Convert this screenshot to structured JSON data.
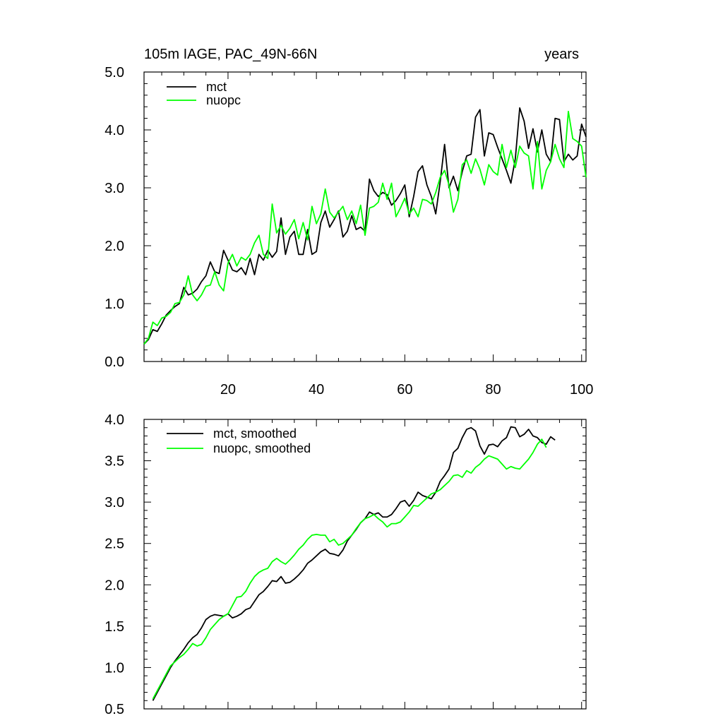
{
  "chart_data": [
    {
      "type": "line",
      "title_left": "105m IAGE, PAC_49N-66N",
      "title_right": "years",
      "xlabel": "",
      "ylabel": "",
      "xlim": [
        1,
        101
      ],
      "ylim": [
        0.0,
        5.0
      ],
      "x_ticks": [
        20,
        40,
        60,
        80,
        100
      ],
      "x_tick_labels": [
        "20",
        "40",
        "60",
        "80",
        "100"
      ],
      "y_ticks": [
        0.0,
        1.0,
        2.0,
        3.0,
        4.0,
        5.0
      ],
      "y_tick_labels": [
        "0.0",
        "1.0",
        "2.0",
        "3.0",
        "4.0",
        "5.0"
      ],
      "legend_position": "top-left",
      "series": [
        {
          "name": "mct",
          "color": "#000000",
          "x_start": 1,
          "values": [
            0.3,
            0.38,
            0.55,
            0.52,
            0.65,
            0.8,
            0.88,
            0.95,
            1.0,
            1.28,
            1.15,
            1.18,
            1.25,
            1.38,
            1.48,
            1.72,
            1.55,
            1.52,
            1.92,
            1.75,
            1.58,
            1.55,
            1.62,
            1.5,
            1.78,
            1.5,
            1.85,
            1.75,
            1.92,
            1.8,
            1.9,
            2.48,
            1.85,
            2.15,
            2.25,
            1.85,
            1.85,
            2.28,
            1.85,
            1.9,
            2.4,
            2.6,
            2.32,
            2.45,
            2.6,
            2.15,
            2.25,
            2.52,
            2.28,
            2.32,
            2.25,
            3.15,
            2.95,
            2.85,
            2.92,
            2.88,
            2.7,
            2.78,
            2.9,
            3.05,
            2.5,
            2.85,
            3.28,
            3.38,
            3.05,
            2.85,
            2.55,
            3.1,
            3.75,
            3.0,
            3.2,
            2.95,
            3.28,
            3.55,
            3.58,
            4.22,
            4.35,
            3.55,
            3.95,
            3.92,
            3.7,
            3.5,
            3.3,
            3.08,
            3.5,
            4.38,
            4.15,
            3.68,
            4.02,
            3.62,
            4.0,
            3.58,
            3.45,
            4.2,
            4.18,
            3.45,
            3.58,
            3.48,
            3.55,
            4.1,
            3.88
          ]
        },
        {
          "name": "nuopc",
          "color": "#00ff00",
          "x_start": 1,
          "values": [
            0.3,
            0.4,
            0.68,
            0.62,
            0.75,
            0.78,
            0.85,
            1.0,
            1.02,
            1.15,
            1.48,
            1.15,
            1.05,
            1.15,
            1.3,
            1.32,
            1.55,
            1.32,
            1.22,
            1.7,
            1.85,
            1.65,
            1.8,
            1.75,
            1.85,
            2.05,
            2.18,
            1.85,
            1.78,
            2.72,
            2.22,
            2.35,
            2.2,
            2.3,
            2.45,
            2.12,
            2.4,
            2.1,
            2.68,
            2.38,
            2.55,
            2.98,
            2.58,
            2.48,
            2.58,
            2.68,
            2.45,
            2.6,
            2.38,
            2.7,
            2.18,
            2.65,
            2.68,
            2.75,
            3.08,
            2.8,
            3.08,
            2.5,
            2.65,
            2.82,
            2.55,
            2.65,
            2.5,
            2.8,
            2.78,
            2.72,
            2.92,
            3.18,
            3.3,
            3.05,
            2.58,
            2.8,
            3.4,
            3.48,
            3.25,
            3.5,
            3.32,
            3.05,
            3.4,
            3.28,
            3.22,
            3.75,
            3.35,
            3.65,
            3.35,
            3.72,
            3.6,
            3.55,
            2.98,
            3.8,
            2.98,
            3.3,
            3.45,
            3.75,
            3.5,
            3.35,
            4.32,
            3.85,
            3.8,
            3.72,
            3.18
          ]
        }
      ]
    },
    {
      "type": "line",
      "title_left": "",
      "title_right": "",
      "xlabel": "",
      "ylabel": "",
      "xlim": [
        1,
        101
      ],
      "ylim": [
        0.5,
        4.0
      ],
      "x_ticks": [
        20,
        40,
        60,
        80,
        100
      ],
      "x_tick_labels": [],
      "y_ticks": [
        0.5,
        1.0,
        1.5,
        2.0,
        2.5,
        3.0,
        3.5,
        4.0
      ],
      "y_tick_labels": [
        "0.5",
        "1.0",
        "1.5",
        "2.0",
        "2.5",
        "3.0",
        "3.5",
        "4.0"
      ],
      "legend_position": "top-left",
      "series": [
        {
          "name": "mct, smoothed",
          "color": "#000000",
          "x_start": 3,
          "values": [
            0.6,
            0.7,
            0.8,
            0.9,
            1.0,
            1.08,
            1.15,
            1.22,
            1.3,
            1.36,
            1.4,
            1.48,
            1.58,
            1.62,
            1.64,
            1.63,
            1.62,
            1.65,
            1.6,
            1.62,
            1.65,
            1.7,
            1.72,
            1.8,
            1.88,
            1.92,
            1.98,
            2.05,
            2.04,
            2.1,
            2.02,
            2.03,
            2.07,
            2.12,
            2.18,
            2.26,
            2.3,
            2.35,
            2.4,
            2.43,
            2.38,
            2.37,
            2.35,
            2.42,
            2.53,
            2.6,
            2.67,
            2.75,
            2.8,
            2.88,
            2.85,
            2.87,
            2.82,
            2.82,
            2.85,
            2.92,
            3.0,
            3.02,
            2.95,
            3.02,
            3.12,
            3.08,
            3.06,
            3.04,
            3.12,
            3.25,
            3.32,
            3.4,
            3.6,
            3.65,
            3.78,
            3.88,
            3.9,
            3.86,
            3.68,
            3.58,
            3.69,
            3.7,
            3.67,
            3.74,
            3.78,
            3.91,
            3.9,
            3.79,
            3.82,
            3.88,
            3.8,
            3.78,
            3.72,
            3.7,
            3.79,
            3.75
          ]
        },
        {
          "name": "nuopc, smoothed",
          "color": "#00ff00",
          "x_start": 3,
          "values": [
            0.62,
            0.72,
            0.82,
            0.92,
            1.02,
            1.07,
            1.12,
            1.16,
            1.22,
            1.29,
            1.26,
            1.28,
            1.36,
            1.46,
            1.52,
            1.58,
            1.62,
            1.65,
            1.75,
            1.85,
            1.86,
            1.92,
            2.02,
            2.1,
            2.15,
            2.18,
            2.2,
            2.28,
            2.32,
            2.28,
            2.25,
            2.3,
            2.36,
            2.43,
            2.48,
            2.55,
            2.6,
            2.61,
            2.6,
            2.6,
            2.52,
            2.55,
            2.48,
            2.5,
            2.55,
            2.6,
            2.68,
            2.75,
            2.8,
            2.82,
            2.85,
            2.8,
            2.76,
            2.7,
            2.74,
            2.74,
            2.76,
            2.82,
            2.88,
            2.96,
            2.95,
            3.0,
            3.05,
            3.1,
            3.12,
            3.15,
            3.2,
            3.25,
            3.32,
            3.33,
            3.3,
            3.38,
            3.35,
            3.42,
            3.46,
            3.52,
            3.56,
            3.54,
            3.52,
            3.46,
            3.4,
            3.43,
            3.41,
            3.4,
            3.46,
            3.52,
            3.6,
            3.7,
            3.76,
            3.66
          ]
        }
      ]
    }
  ]
}
